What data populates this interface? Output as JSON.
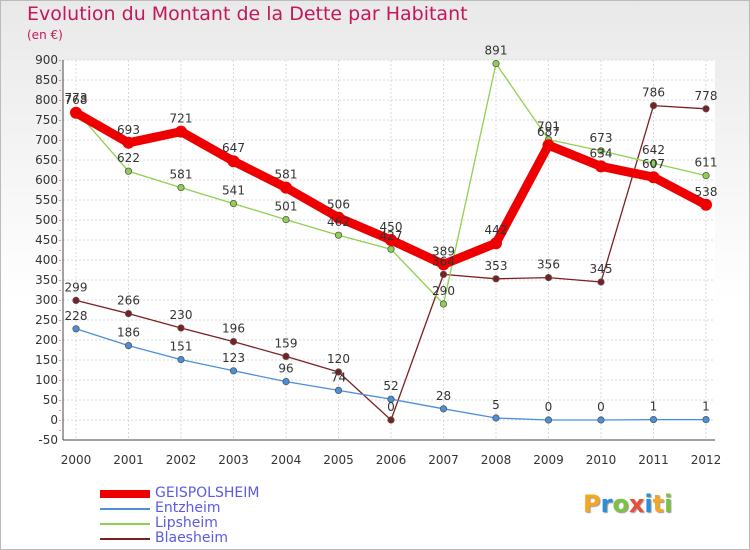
{
  "title": "Evolution du Montant de la Dette par Habitant",
  "subtitle": "(en €)",
  "chart_data": {
    "type": "line",
    "x": [
      "2000",
      "2001",
      "2002",
      "2003",
      "2004",
      "2005",
      "2006",
      "2007",
      "2008",
      "2009",
      "2010",
      "2011",
      "2012"
    ],
    "ylim": [
      -50,
      900
    ],
    "yticks": [
      -50,
      0,
      50,
      100,
      150,
      200,
      250,
      300,
      350,
      400,
      450,
      500,
      550,
      600,
      650,
      700,
      750,
      800,
      850,
      900
    ],
    "grid": true,
    "legend_position": "bottom-left",
    "series": [
      {
        "name": "GEISPOLSHEIM",
        "color": "#ee0000",
        "values": [
          768,
          693,
          721,
          647,
          581,
          506,
          450,
          389,
          442,
          687,
          634,
          607,
          538
        ],
        "labels": [
          "768",
          "693",
          "721",
          "647",
          "581",
          "506",
          "450",
          "389",
          "442",
          "687",
          "634",
          "607",
          "538"
        ]
      },
      {
        "name": "Entzheim",
        "color": "#4a90d9",
        "values": [
          228,
          186,
          151,
          123,
          96,
          74,
          52,
          28,
          5,
          0,
          0,
          1,
          1
        ],
        "labels": [
          "228",
          "186",
          "151",
          "123",
          "96",
          "74",
          "52",
          "28",
          "5",
          "0",
          "0",
          "1",
          "1"
        ]
      },
      {
        "name": "Lipsheim",
        "color": "#8fd14f",
        "values": [
          773,
          622,
          581,
          541,
          501,
          462,
          427,
          290,
          891,
          701,
          673,
          642,
          611
        ],
        "labels": [
          "773",
          "622",
          "581",
          "541",
          "501",
          "462",
          "427",
          "290",
          "891",
          "701",
          "673",
          "642",
          "611"
        ]
      },
      {
        "name": "Blaesheim",
        "color": "#7b2020",
        "values": [
          299,
          266,
          230,
          196,
          159,
          120,
          0,
          364,
          353,
          356,
          345,
          786,
          778
        ],
        "labels": [
          "299",
          "266",
          "230",
          "196",
          "159",
          "120",
          "0",
          "364",
          "353",
          "356",
          "345",
          "786",
          "778"
        ]
      }
    ]
  },
  "logo": {
    "text": "Proxiti",
    "letters": [
      "P",
      "r",
      "o",
      "x",
      "i",
      "t",
      "i"
    ],
    "colors": [
      "#f5a623",
      "#2b8fd8",
      "#7cc142",
      "#e94e3c",
      "#2b8fd8",
      "#f5a623",
      "#7cc142"
    ]
  }
}
